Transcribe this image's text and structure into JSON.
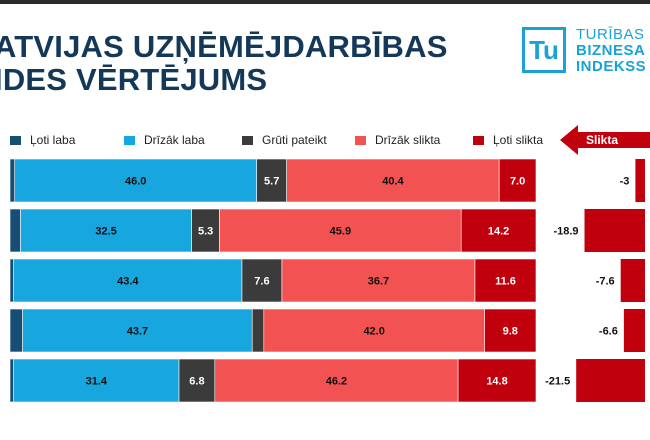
{
  "header": {
    "title_line1": "ATVIJAS UZŅĒMĒJDARBĪBAS",
    "title_line2": "IDES VĒRTĒJUMS"
  },
  "logo": {
    "mark": "Tu",
    "line1": "TURĪBAS",
    "line2": "BIZNESA",
    "line3": "INDEKSS"
  },
  "arrow_label": "Slikta",
  "colors": {
    "very_good": "#164f73",
    "rather_good": "#17a6de",
    "hard_to_say": "#3b3b3b",
    "rather_bad": "#f25252",
    "very_bad": "#c0000c"
  },
  "chart_data": {
    "type": "bar",
    "orientation": "horizontal",
    "stacked": true,
    "normalized_percent": true,
    "categories": [
      "",
      "",
      "",
      "",
      ""
    ],
    "series": [
      {
        "name": "Ļoti laba",
        "values": [
          0.9,
          2.0,
          0.7,
          2.4,
          0.7
        ]
      },
      {
        "name": "Drīzāk laba",
        "values": [
          46.0,
          32.5,
          43.4,
          43.7,
          31.4
        ]
      },
      {
        "name": "Grūti pateikt",
        "values": [
          5.7,
          5.3,
          7.6,
          2.2,
          6.8
        ]
      },
      {
        "name": "Drīzāk slikta",
        "values": [
          40.4,
          45.9,
          36.7,
          42.0,
          46.2
        ]
      },
      {
        "name": "Ļoti slikta",
        "values": [
          7.0,
          14.2,
          11.6,
          9.8,
          14.8
        ]
      }
    ],
    "balance": {
      "labels": [
        "-3",
        "-18.9",
        "-7.6",
        "-6.6",
        "-21.5"
      ],
      "values": [
        -3,
        -18.9,
        -7.6,
        -6.6,
        -21.5
      ]
    },
    "legend": [
      "Ļoti laba",
      "Drīzāk laba",
      "Grūti pateikt",
      "Drīzāk slikta",
      "Ļoti slikta"
    ],
    "legend_position": "top",
    "xlim": [
      0,
      100
    ]
  }
}
